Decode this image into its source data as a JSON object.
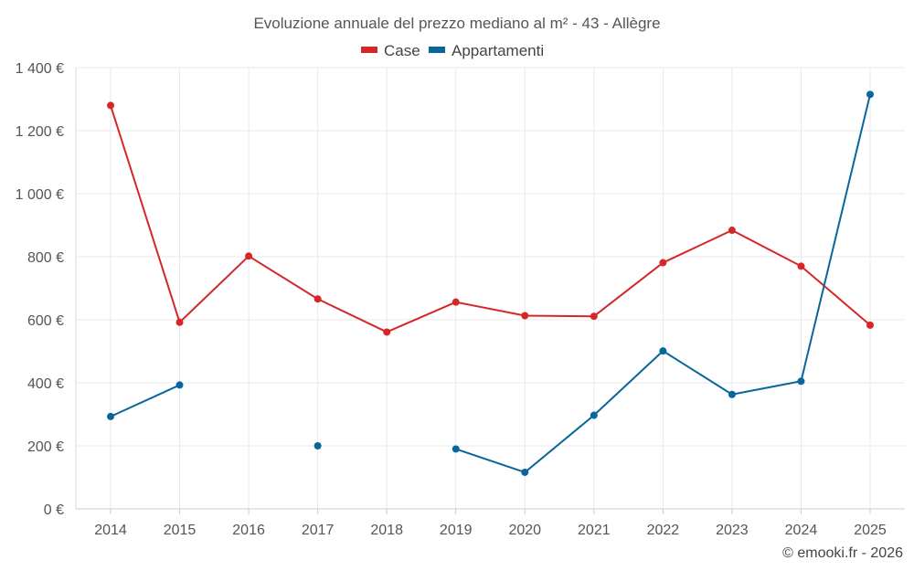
{
  "chart_data": {
    "type": "line",
    "title": "Evoluzione annuale del prezzo mediano al m² - 43 - Allègre",
    "categories": [
      "2014",
      "2015",
      "2016",
      "2017",
      "2018",
      "2019",
      "2020",
      "2021",
      "2022",
      "2023",
      "2024",
      "2025"
    ],
    "y_ticks": [
      "0 €",
      "200 €",
      "400 €",
      "600 €",
      "800 €",
      "1 000 €",
      "1 200 €",
      "1 400 €"
    ],
    "ylim": [
      0,
      1400
    ],
    "grid": true,
    "legend_position": "top-center",
    "series": [
      {
        "name": "Case",
        "color": "#d62728",
        "values": [
          1280,
          592,
          802,
          666,
          561,
          656,
          613,
          611,
          781,
          884,
          770,
          583
        ]
      },
      {
        "name": "Appartamenti",
        "color": "#08669a",
        "values": [
          293,
          393,
          null,
          200,
          null,
          190,
          116,
          297,
          501,
          363,
          405,
          1315
        ]
      }
    ],
    "credit": "© emooki.fr - 2026"
  }
}
